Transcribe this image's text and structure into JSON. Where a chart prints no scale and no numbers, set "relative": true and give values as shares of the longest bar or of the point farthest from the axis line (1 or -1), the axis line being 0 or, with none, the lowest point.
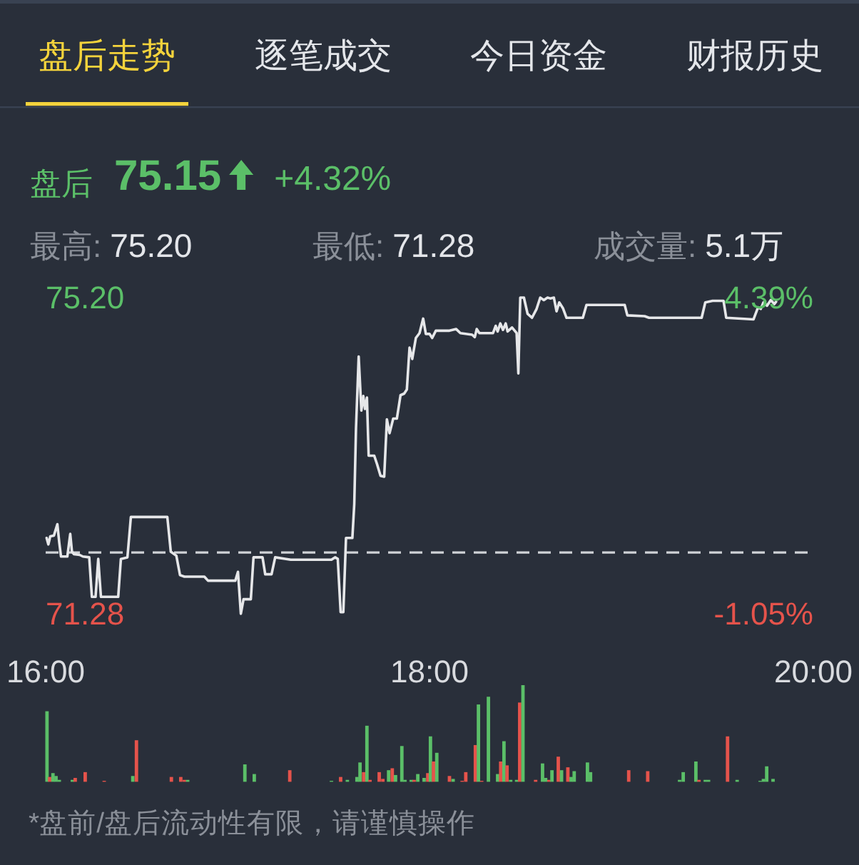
{
  "chart_data": [
    {
      "type": "other",
      "annotations": [
        "盘后走势",
        "逐笔成交",
        "今日资金",
        "财报历史",
        "盘后",
        "75.15",
        "+4.32%",
        "最高:",
        "75.20",
        "最低:",
        "71.28",
        "成交量:",
        "5.1万"
      ]
    },
    {
      "type": "line",
      "color": "#e6e7e9",
      "tick_labels": "y",
      "x": [
        16.005,
        16.014,
        16.024,
        16.043,
        16.061,
        16.071,
        16.08,
        16.113,
        16.128,
        16.137,
        16.147,
        16.177,
        16.194,
        16.227,
        16.241,
        16.26,
        16.274,
        16.288,
        16.378,
        16.392,
        16.426,
        16.444,
        16.634,
        16.652,
        16.681,
        16.7,
        16.723,
        16.827,
        16.846,
        16.988,
        17.002,
        17.017,
        17.031,
        17.069,
        17.083,
        17.13,
        17.144,
        17.177,
        17.196,
        17.253,
        17.277,
        17.489,
        17.508,
        17.522,
        17.537,
        17.551,
        17.565,
        17.598,
        17.608,
        17.617,
        17.631,
        17.645,
        17.655,
        17.664,
        17.674,
        17.683,
        17.712,
        17.726,
        17.745,
        17.764,
        17.778,
        17.792,
        17.811,
        17.83,
        17.849,
        17.868,
        17.882,
        17.896,
        17.91,
        17.929,
        17.948,
        17.967,
        17.981,
        18.0,
        18.014,
        18.033,
        18.104,
        18.139,
        18.161,
        18.222,
        18.236,
        18.246,
        18.26,
        18.331,
        18.345,
        18.355,
        18.369,
        18.383,
        18.397,
        18.407,
        18.43,
        18.454,
        18.463,
        18.473,
        18.492,
        18.511,
        18.534,
        18.558,
        18.577,
        18.596,
        18.615,
        18.629,
        18.648,
        18.662,
        18.676,
        18.695,
        18.714,
        18.799,
        18.818,
        19.017,
        19.031,
        19.121,
        19.144,
        19.418,
        19.437,
        19.475,
        19.532,
        19.546,
        19.688,
        19.712,
        19.726,
        19.74,
        19.759,
        19.778,
        19.797,
        19.806
      ],
      "values": [
        72.22,
        72.14,
        72.24,
        72.25,
        72.39,
        72.16,
        71.99,
        71.99,
        72.27,
        72.05,
        72.02,
        72.01,
        71.99,
        71.98,
        71.49,
        71.49,
        71.96,
        71.49,
        71.49,
        71.96,
        71.98,
        72.48,
        72.48,
        72.05,
        72.0,
        71.76,
        71.74,
        71.74,
        71.69,
        71.69,
        71.8,
        71.28,
        71.46,
        71.46,
        71.98,
        71.98,
        71.77,
        71.77,
        71.98,
        71.96,
        71.95,
        71.95,
        71.98,
        71.96,
        71.3,
        71.3,
        72.22,
        72.22,
        72.64,
        73.58,
        74.47,
        73.8,
        73.98,
        73.82,
        73.96,
        73.24,
        73.24,
        73.14,
        72.99,
        72.98,
        73.69,
        73.52,
        73.7,
        73.7,
        73.99,
        74.01,
        74.06,
        74.58,
        74.44,
        74.7,
        74.76,
        74.94,
        74.75,
        74.75,
        74.7,
        74.79,
        74.79,
        74.81,
        74.76,
        74.74,
        74.71,
        74.81,
        74.76,
        74.76,
        74.85,
        74.78,
        74.88,
        74.8,
        74.88,
        74.78,
        74.83,
        74.76,
        74.26,
        75.2,
        75.2,
        75.0,
        74.95,
        75.06,
        75.2,
        75.17,
        75.2,
        75.19,
        75.2,
        75.03,
        75.14,
        75.07,
        74.95,
        74.95,
        75.11,
        75.11,
        74.98,
        74.97,
        74.95,
        74.95,
        75.14,
        75.16,
        75.16,
        74.95,
        74.93,
        75.08,
        75.06,
        75.14,
        75.1,
        75.17,
        75.12,
        75.15
      ],
      "xlim": [
        16,
        20
      ],
      "ylim": [
        71.28,
        75.2
      ],
      "yticks": [
        {
          "value": 71.28,
          "label": "71.28"
        },
        {
          "value": 75.2,
          "label": "75.20"
        }
      ],
      "y2lim": [
        -1.05,
        4.39
      ],
      "y2ticks": [
        {
          "value": -1.05,
          "label": "-1.05%"
        },
        {
          "value": 4.39,
          "label": "4.39%"
        }
      ],
      "ref_lines": [
        {
          "axis": "y",
          "value": 72.04,
          "color": "#cfd2d6",
          "line_style": "dashed"
        }
      ]
    },
    {
      "type": "bar",
      "relative": true,
      "xlim": [
        16,
        20
      ],
      "xticks": [
        {
          "value": 16,
          "label": "16:00"
        },
        {
          "value": 18,
          "label": "18:00"
        },
        {
          "value": 20,
          "label": "20:00"
        }
      ],
      "x": [
        16.007,
        16.021,
        16.038,
        16.054,
        16.071,
        16.139,
        16.154,
        16.206,
        16.305,
        16.454,
        16.473,
        16.655,
        16.704,
        16.723,
        16.74,
        17.038,
        17.087,
        17.272,
        17.489,
        17.537,
        17.572,
        17.622,
        17.638,
        17.657,
        17.674,
        17.69,
        17.738,
        17.757,
        17.787,
        17.806,
        17.823,
        17.856,
        17.872,
        17.905,
        17.92,
        17.939,
        17.972,
        17.991,
        18.005,
        18.021,
        18.038,
        18.104,
        18.123,
        18.17,
        18.189,
        18.239,
        18.255,
        18.272,
        18.307,
        18.355,
        18.371,
        18.388,
        18.404,
        18.423,
        18.454,
        18.47,
        18.487,
        18.553,
        18.589,
        18.605,
        18.622,
        18.638,
        18.671,
        18.688,
        18.721,
        18.738,
        18.754,
        18.823,
        18.839,
        19.038,
        19.137,
        19.303,
        19.322,
        19.388,
        19.404,
        19.437,
        19.454,
        19.553,
        19.603,
        19.723,
        19.74,
        19.757,
        19.79
      ],
      "values": [
        0.73,
        0.05,
        0.09,
        0.06,
        0.02,
        0.02,
        0.04,
        0.1,
        0.01,
        0.06,
        0.43,
        0.05,
        0.05,
        0.02,
        0.02,
        0.18,
        0.08,
        0.12,
        0.01,
        0.05,
        0.02,
        0.05,
        0.2,
        0.1,
        0.58,
        0.02,
        0.1,
        0.03,
        0.12,
        0.14,
        0.07,
        0.37,
        0.02,
        0.02,
        0.02,
        0.08,
        0.04,
        0.09,
        0.47,
        0.21,
        0.3,
        0.06,
        0.03,
        0.01,
        0.1,
        0.38,
        0.8,
        0.01,
        0.88,
        0.08,
        0.21,
        0.42,
        0.17,
        0.02,
        0.02,
        0.82,
        1,
        0.02,
        0.19,
        0.04,
        0.02,
        0.12,
        0.26,
        0.12,
        0.15,
        0.05,
        0.11,
        0.2,
        0.1,
        0.12,
        0.11,
        0.02,
        0.1,
        0.21,
        0.02,
        0.02,
        0.02,
        0.47,
        0.02,
        0.01,
        0.03,
        0.16,
        0.03
      ],
      "colors": [
        "#5bbf68",
        "#e5534b",
        "#5bbf68",
        "#5bbf68",
        "#5bbf68",
        "#5bbf68",
        "#e5534b",
        "#e5534b",
        "#e5534b",
        "#5bbf68",
        "#e5534b",
        "#e5534b",
        "#e5534b",
        "#e5534b",
        "#5bbf68",
        "#5bbf68",
        "#5bbf68",
        "#e5534b",
        "#5bbf68",
        "#e5534b",
        "#5bbf68",
        "#5bbf68",
        "#5bbf68",
        "#e5534b",
        "#5bbf68",
        "#e5534b",
        "#e5534b",
        "#e5534b",
        "#5bbf68",
        "#e5534b",
        "#5bbf68",
        "#5bbf68",
        "#5bbf68",
        "#5bbf68",
        "#e5534b",
        "#5bbf68",
        "#5bbf68",
        "#e5534b",
        "#5bbf68",
        "#e5534b",
        "#5bbf68",
        "#e5534b",
        "#5bbf68",
        "#e5534b",
        "#e5534b",
        "#e5534b",
        "#5bbf68",
        "#e5534b",
        "#5bbf68",
        "#5bbf68",
        "#e5534b",
        "#5bbf68",
        "#e5534b",
        "#5bbf68",
        "#5bbf68",
        "#e5534b",
        "#5bbf68",
        "#e5534b",
        "#5bbf68",
        "#5bbf68",
        "#e5534b",
        "#5bbf68",
        "#e5534b",
        "#5bbf68",
        "#e5534b",
        "#5bbf68",
        "#5bbf68",
        "#5bbf68",
        "#5bbf68",
        "#e5534b",
        "#e5534b",
        "#5bbf68",
        "#5bbf68",
        "#5bbf68",
        "#e5534b",
        "#5bbf68",
        "#5bbf68",
        "#e5534b",
        "#5bbf68",
        "#5bbf68",
        "#5bbf68",
        "#5bbf68",
        "#5bbf68"
      ],
      "annotations": [
        "*盘前/盘后流动性有限，请谨慎操作"
      ]
    }
  ]
}
